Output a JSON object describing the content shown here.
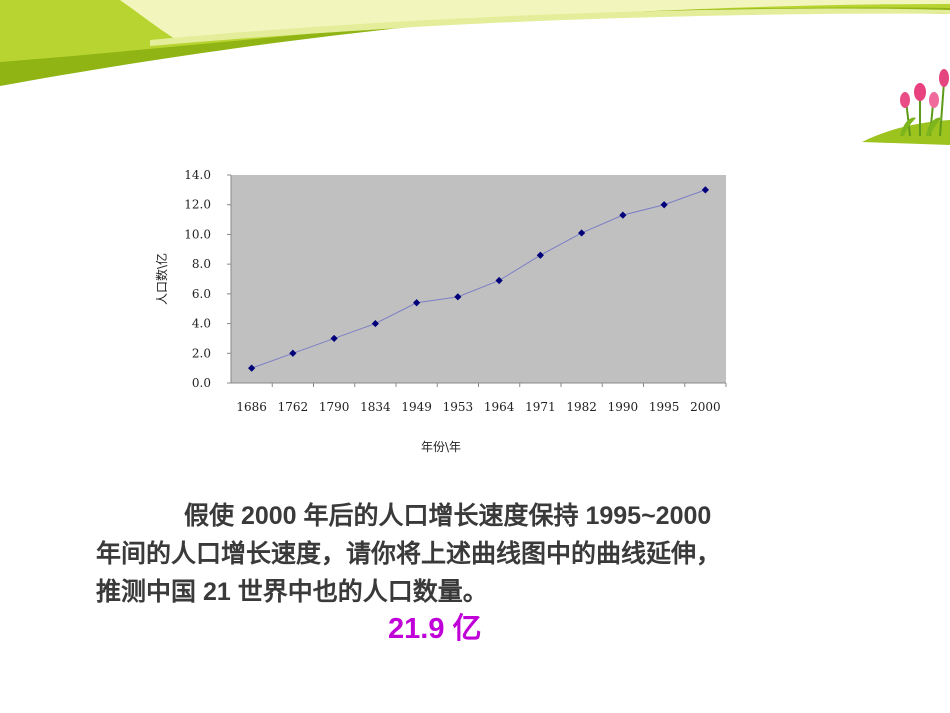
{
  "chart_data": {
    "type": "line",
    "x_categories": [
      "1686",
      "1762",
      "1790",
      "1834",
      "1949",
      "1953",
      "1964",
      "1971",
      "1982",
      "1990",
      "1995",
      "2000"
    ],
    "values": [
      1.0,
      2.0,
      3.0,
      4.0,
      5.4,
      5.8,
      6.9,
      8.6,
      10.1,
      11.3,
      12.0,
      13.0
    ],
    "y_ticks": [
      "0.0",
      "2.0",
      "4.0",
      "6.0",
      "8.0",
      "10.0",
      "12.0",
      "14.0"
    ],
    "ylim": [
      0,
      14
    ],
    "xlabel": "年份\\年",
    "ylabel": "人口数\\亿",
    "grid": false,
    "legend": "none",
    "plot_background": "#c0c0c0",
    "line_color": "#7b7fc4",
    "marker_color": "#00007a"
  },
  "problem": {
    "line1": "假使 2000 年后的人口增长速度保持 1995~2000",
    "line2": "年间的人口增长速度，请你将上述曲线图中的曲线延伸，",
    "line3": "推测中国 21 世界中也的人口数量。"
  },
  "answer": "21.9 亿",
  "colors": {
    "banner_green": "#9cbf1c",
    "banner_yellow": "#f2f5b4",
    "answer_color": "#c000d8"
  },
  "icons": [
    "tulip-flowers-icon"
  ]
}
